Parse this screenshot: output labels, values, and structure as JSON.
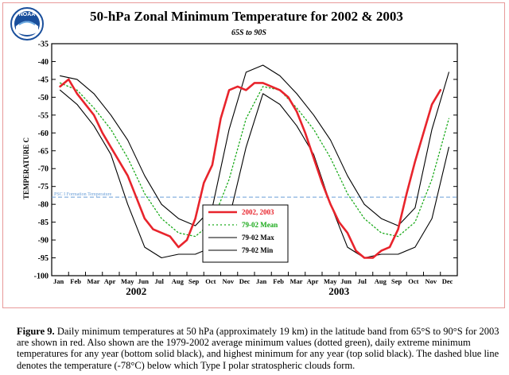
{
  "logo": {
    "text": "NOAA"
  },
  "chart_data": {
    "type": "line",
    "title": "50-hPa Zonal Minimum Temperature for 2002 & 2003",
    "subtitle": "65S to 90S",
    "ylabel": "TEMPERATURE C",
    "ylim": [
      -100,
      -35
    ],
    "yticks": [
      -35,
      -40,
      -45,
      -50,
      -55,
      -60,
      -65,
      -70,
      -75,
      -80,
      -85,
      -90,
      -95,
      -100
    ],
    "x_months": [
      "Jan",
      "Feb",
      "Mar",
      "Apr",
      "May",
      "Jun",
      "Jul",
      "Aug",
      "Sep",
      "Oct",
      "Nov",
      "Dec",
      "Jan",
      "Feb",
      "Mar",
      "Apr",
      "May",
      "Jun",
      "Jul",
      "Aug",
      "Sep",
      "Oct",
      "Nov",
      "Dec"
    ],
    "x_years": [
      "2002",
      "2003"
    ],
    "grid": false,
    "legend_position": "bottom-center",
    "threshold": {
      "label": "PSC I Formation Temperature",
      "value": -78,
      "color": "#6a9fd8"
    },
    "series": [
      {
        "name": "2002, 2003",
        "color": "#e8242c",
        "style": "solid-thick",
        "x": [
          0,
          0.5,
          1,
          1.5,
          2,
          2.5,
          3,
          3.5,
          4,
          4.5,
          5,
          5.5,
          6,
          6.5,
          7,
          7.5,
          8,
          8.5,
          9,
          9.5,
          10,
          10.5,
          11,
          11.5,
          12,
          12.5,
          13,
          13.5,
          14,
          14.5,
          15,
          15.5,
          16,
          16.5,
          17,
          17.5,
          18,
          18.5,
          19,
          19.5,
          20,
          20.5,
          21,
          21.5,
          22,
          22.5,
          23
        ],
        "values": [
          -47,
          -45,
          -49,
          -52,
          -55,
          -60,
          -64,
          -68,
          -72,
          -78,
          -84,
          -87,
          -88,
          -89,
          -92,
          -90,
          -84,
          -74,
          -69,
          -56,
          -48,
          -47,
          -48,
          -46,
          -46,
          -47,
          -48,
          -50,
          -54,
          -60,
          -67,
          -74,
          -80,
          -85,
          -88,
          -93,
          -95,
          -95,
          -93,
          -92,
          -87,
          -77,
          -68,
          -60,
          -52,
          -48,
          null
        ]
      },
      {
        "name": "79-02 Mean",
        "color": "#1aaa1a",
        "style": "dotted",
        "x": [
          0,
          1,
          2,
          3,
          4,
          5,
          6,
          7,
          8,
          9,
          10,
          11,
          12,
          13,
          14,
          15,
          16,
          17,
          18,
          19,
          20,
          21,
          22,
          23
        ],
        "values": [
          -46,
          -48,
          -53,
          -59,
          -67,
          -77,
          -84,
          -88,
          -89,
          -85,
          -73,
          -56,
          -47,
          -48,
          -53,
          -59,
          -67,
          -77,
          -84,
          -88,
          -89,
          -85,
          -73,
          -56
        ]
      },
      {
        "name": "79-02 Max",
        "color": "#000000",
        "style": "solid-thin",
        "x": [
          0,
          1,
          2,
          3,
          4,
          5,
          6,
          7,
          8,
          9,
          10,
          11,
          12,
          13,
          14,
          15,
          16,
          17,
          18,
          19,
          20,
          21,
          22,
          23
        ],
        "values": [
          -44,
          -45,
          -49,
          -55,
          -62,
          -72,
          -80,
          -84,
          -86,
          -81,
          -59,
          -43,
          -41,
          -44,
          -49,
          -55,
          -62,
          -72,
          -80,
          -84,
          -86,
          -81,
          -59,
          -43
        ]
      },
      {
        "name": "79-02 Min",
        "color": "#000000",
        "style": "solid-thin",
        "x": [
          0,
          1,
          2,
          3,
          4,
          5,
          6,
          7,
          8,
          9,
          10,
          11,
          12,
          13,
          14,
          15,
          16,
          17,
          18,
          19,
          20,
          21,
          22,
          23
        ],
        "values": [
          -48,
          -52,
          -58,
          -66,
          -80,
          -92,
          -95,
          -94,
          -94,
          -92,
          -84,
          -64,
          -49,
          -52,
          -58,
          -66,
          -80,
          -92,
          -95,
          -94,
          -94,
          -92,
          -84,
          -64
        ]
      }
    ]
  },
  "caption": {
    "label": "Figure 9.",
    "text": " Daily minimum temperatures at 50 hPa (approximately 19 km) in the latitude band from 65°S to 90°S for 2003 are shown in red.  Also shown are the 1979-2002 average minimum values (dotted green), daily extreme minimum temperatures for any year (bottom solid black), and highest minimum for any year (top solid black).  The dashed blue line denotes the temperature (-78°C) below which Type I polar stratospheric clouds form."
  }
}
